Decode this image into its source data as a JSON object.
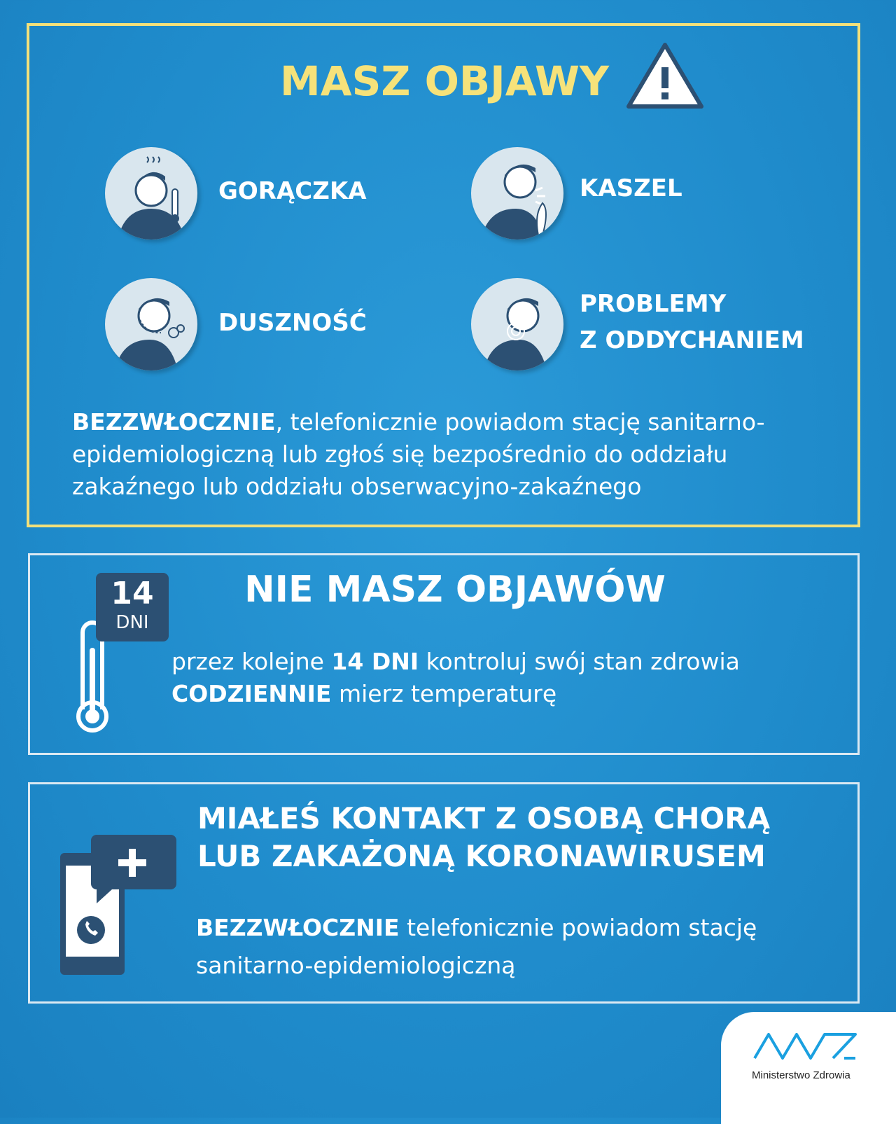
{
  "symptoms_section": {
    "title": "MASZ OBJAWY",
    "symptoms": [
      {
        "label": "GORĄCZKA",
        "icon": "fever-person-icon"
      },
      {
        "label": "KASZEL",
        "icon": "cough-person-icon"
      },
      {
        "label": "DUSZNOŚĆ",
        "icon": "shortness-of-breath-person-icon"
      },
      {
        "label_line1": "PROBLEMY",
        "label_line2": "Z ODDYCHANIEM",
        "icon": "breathing-problem-person-icon"
      }
    ],
    "instruction_bold": "BEZZWŁOCZNIE",
    "instruction_l1": ", telefonicznie powiadom stację sanitarno-",
    "instruction_l2": "epidemiologiczną lub zgłoś się bezpośrednio do oddziału",
    "instruction_l3": "zakaźnego lub oddziału obserwacyjno-zakaźnego"
  },
  "no_symptoms_section": {
    "title": "NIE MASZ OBJAWÓW",
    "badge_number": "14",
    "badge_unit": "DNI",
    "l1_a": "przez kolejne ",
    "l1_bold": "14 DNI",
    "l1_b": " kontroluj swój stan zdrowia",
    "l2_bold": "CODZIENNIE",
    "l2_b": " mierz temperaturę"
  },
  "contact_section": {
    "title_l1": "MIAŁEŚ KONTAKT Z OSOBĄ CHORĄ",
    "title_l2": "LUB ZAKAŻONĄ KORONAWIRUSEM",
    "l1_bold": "BEZZWŁOCZNIE",
    "l1_b": " telefonicznie powiadom stację",
    "l2": "sanitarno-epidemiologiczną"
  },
  "logo": {
    "text": "Ministerstwo Zdrowia"
  },
  "colors": {
    "background": "#1f8bcb",
    "accent_yellow": "#f6e27a",
    "icon_dark": "#2c5073",
    "logo_blue": "#1aa0e0"
  }
}
